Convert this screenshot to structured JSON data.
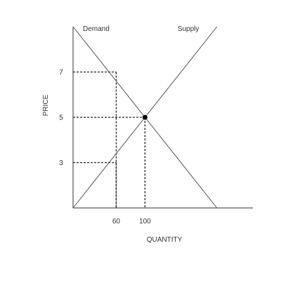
{
  "chart_data": {
    "type": "line",
    "title": "",
    "xlabel": "QUANTITY",
    "ylabel": "PRICE",
    "xlim": [
      0,
      250
    ],
    "ylim": [
      1,
      9
    ],
    "x_ticks": [
      60,
      100
    ],
    "x_tick_labels": [
      "60",
      "100"
    ],
    "y_ticks": [
      3,
      5,
      7
    ],
    "y_tick_labels": [
      "3",
      "5",
      "7"
    ],
    "grid": false,
    "legend": "none",
    "series": [
      {
        "name": "Demand",
        "x": [
          0,
          200
        ],
        "y": [
          9,
          1
        ]
      },
      {
        "name": "Supply",
        "x": [
          0,
          200
        ],
        "y": [
          1,
          9
        ]
      }
    ],
    "equilibrium": {
      "x": 100,
      "y": 5
    },
    "guide_lines": [
      {
        "price": 7,
        "quantity": 60
      },
      {
        "price": 5,
        "quantity": 100
      },
      {
        "price": 3,
        "quantity": 60
      }
    ],
    "colors": {
      "axis": "#333333",
      "line": "#555555",
      "guide": "#222222",
      "point": "#000000"
    }
  }
}
